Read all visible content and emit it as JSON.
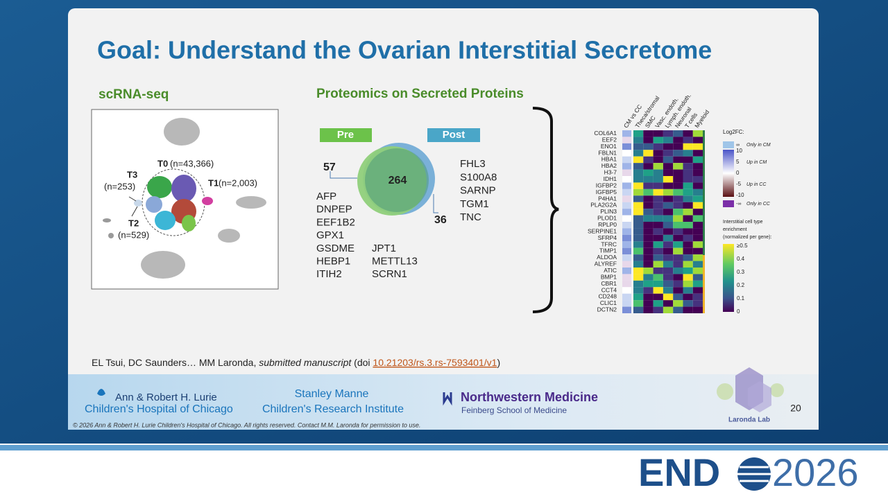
{
  "slide": {
    "title": "Goal: Understand the Ovarian Interstitial Secretome",
    "number": 20
  },
  "scrna": {
    "heading": "scRNA-seq",
    "clusters": [
      {
        "name": "T0",
        "count": "(n=43,366)"
      },
      {
        "name": "T1",
        "count": "(n=2,003)"
      },
      {
        "name": "T2",
        "count": "(n=529)"
      },
      {
        "name": "T3",
        "count": "(n=253)"
      }
    ]
  },
  "proteomics": {
    "heading": "Proteomics on Secreted Proteins",
    "pre_label": "Pre",
    "post_label": "Post",
    "pre_only": 57,
    "shared": 264,
    "post_only": 36,
    "pre_genes": [
      "AFP",
      "DNPEP",
      "EEF1B2",
      "GPX1",
      "GSDME",
      "HEBP1",
      "ITIH2",
      "JPT1",
      "METTL13",
      "SCRN1"
    ],
    "post_genes": [
      "FHL3",
      "S100A8",
      "SARNP",
      "TGM1",
      "TNC"
    ]
  },
  "heatmap": {
    "columns": [
      "CM vs CC",
      "Theca/stromal",
      "SMC",
      "Vasc. endoth.",
      "Lymph. endoth.",
      "Neuronal",
      "T cells",
      "Myeloid"
    ],
    "rows": [
      "COL6A1",
      "EEF2",
      "ENO1",
      "FBLN1",
      "HBA1",
      "HBA2",
      "H3-7",
      "IDH1",
      "IGFBP2",
      "IGFBP5",
      "P4HA1",
      "PLA2G2A",
      "PLIN3",
      "PLOD1",
      "RPLP0",
      "SERPINE1",
      "SFRP4",
      "TFRC",
      "TIMP1",
      "ALDOA",
      "ALYREF",
      "ATIC",
      "BMP1",
      "CBR1",
      "CCT4",
      "CD248",
      "CLIC1",
      "DCTN2"
    ],
    "fc_legend": {
      "title": "Log2FC:",
      "only_cm_symbol": "∞",
      "only_cm": "Only in CM",
      "ticks": [
        "10",
        "5",
        "0",
        "-5",
        "-10"
      ],
      "up_cm": "Up in CM",
      "up_cc": "Up in CC",
      "only_cc_symbol": "-∞",
      "only_cc": "Only in CC"
    },
    "enrichment_legend": {
      "title": [
        "Interstitial cell type",
        "enrichment",
        "(normalized per gene):"
      ],
      "ticks": [
        "≥0.5",
        "0.4",
        "0.3",
        "0.2",
        "0.1",
        "0"
      ]
    }
  },
  "citation": {
    "authors": "EL Tsui, DC Saunders… MM Laronda, ",
    "venue": "submitted manuscript",
    "doi_open": " (doi ",
    "doi": "10.21203/rs.3.rs-7593401/v1",
    "doi_close": ")"
  },
  "footer": {
    "lurie_top": "Ann & Robert H. Lurie",
    "lurie_bottom": "Children's Hospital of Chicago",
    "manne_top": "Stanley Manne",
    "manne_bottom": "Children's Research Institute",
    "nm_top": "Northwestern Medicine",
    "nm_bottom": "Feinberg School of Medicine",
    "lab": "Laronda Lab",
    "copyright": "© 2026 Ann & Robert H. Lurie Children's Hospital of Chicago. All rights reserved. Contact M.M. Laronda for permission to use."
  },
  "banner": {
    "left": "END",
    "right": "2026"
  }
}
